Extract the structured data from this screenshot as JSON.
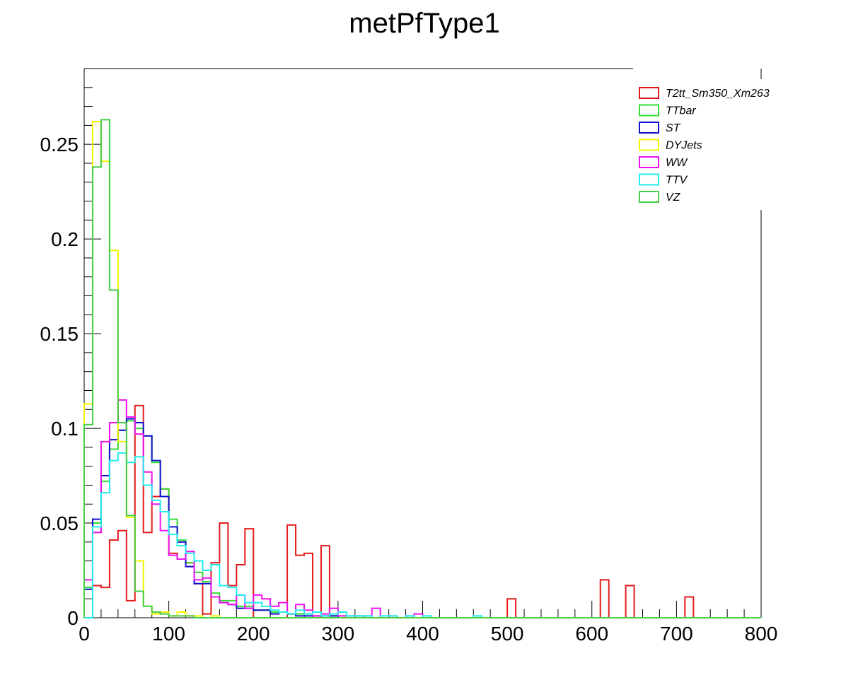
{
  "chart_data": {
    "type": "histogram",
    "title": "metPfType1",
    "xlabel": "",
    "ylabel": "",
    "xlim": [
      0,
      800
    ],
    "ylim": [
      0,
      0.29
    ],
    "bin_width": 10,
    "x_ticks": [
      "0",
      "100",
      "200",
      "300",
      "400",
      "500",
      "600",
      "700",
      "800"
    ],
    "y_ticks": [
      "0",
      "0.05",
      "0.1",
      "0.15",
      "0.2",
      "0.25"
    ],
    "y_tick_values": [
      0,
      0.05,
      0.1,
      0.15,
      0.2,
      0.25
    ],
    "grid": false,
    "legend_position": "top-right",
    "series": [
      {
        "name": "T2tt_Sm350_Xm263",
        "color": "#e31a1c",
        "values": [
          0.0,
          0.017,
          0.016,
          0.041,
          0.046,
          0.009,
          0.112,
          0.045,
          0.064,
          0.068,
          0.034,
          0.031,
          0.029,
          0.018,
          0.002,
          0.029,
          0.05,
          0.017,
          0.028,
          0.047,
          0.0,
          0.0,
          0.0,
          0.0,
          0.049,
          0.033,
          0.034,
          0.0,
          0.038,
          0.0,
          0.0,
          0.0,
          0.0,
          0.0,
          0.0,
          0.0,
          0.0,
          0.0,
          0.0,
          0.0,
          0.0,
          0.0,
          0.0,
          0.0,
          0.0,
          0.0,
          0.0,
          0.0,
          0.0,
          0.0,
          0.01,
          0.0,
          0.0,
          0.0,
          0.0,
          0.0,
          0.0,
          0.0,
          0.0,
          0.0,
          0.0,
          0.02,
          0.0,
          0.0,
          0.017,
          0.0,
          0.0,
          0.0,
          0.0,
          0.0,
          0.0,
          0.011,
          0.0,
          0.0,
          0.0,
          0.0,
          0.0,
          0.0,
          0.0,
          0.0
        ]
      },
      {
        "name": "TTbar",
        "color": "#33dd33",
        "values": [
          0.016,
          0.05,
          0.072,
          0.089,
          0.099,
          0.104,
          0.1,
          0.096,
          0.082,
          0.068,
          0.052,
          0.041,
          0.029,
          0.024,
          0.019,
          0.013,
          0.009,
          0.009,
          0.006,
          0.006,
          0.004,
          0.004,
          0.003,
          0.003,
          0.002,
          0.002,
          0.002,
          0.001,
          0.001,
          0.001,
          0.001,
          0.001,
          0.001,
          0.0,
          0.0,
          0.0,
          0.0,
          0.0,
          0.0,
          0.0,
          0.0,
          0.0,
          0.0,
          0.0,
          0.0,
          0.0,
          0.0,
          0.0,
          0.0,
          0.0,
          0.0,
          0.0,
          0.0,
          0.0,
          0.0,
          0.0,
          0.0,
          0.0,
          0.0,
          0.0,
          0.0,
          0.0,
          0.0,
          0.0,
          0.0,
          0.0,
          0.0,
          0.0,
          0.0,
          0.0,
          0.0,
          0.0,
          0.0,
          0.0,
          0.0,
          0.0,
          0.0,
          0.0,
          0.0,
          0.0
        ]
      },
      {
        "name": "ST",
        "color": "#1010cc",
        "values": [
          0.015,
          0.052,
          0.075,
          0.094,
          0.099,
          0.105,
          0.103,
          0.096,
          0.083,
          0.064,
          0.048,
          0.04,
          0.027,
          0.018,
          0.018,
          0.011,
          0.008,
          0.007,
          0.005,
          0.005,
          0.004,
          0.004,
          0.002,
          0.003,
          0.002,
          0.001,
          0.001,
          0.001,
          0.001,
          0.001,
          0.0,
          0.0,
          0.0,
          0.0,
          0.0,
          0.0,
          0.0,
          0.0,
          0.0,
          0.0,
          0.0,
          0.0,
          0.0,
          0.0,
          0.0,
          0.0,
          0.0,
          0.0,
          0.0,
          0.0,
          0.0,
          0.0,
          0.0,
          0.0,
          0.0,
          0.0,
          0.0,
          0.0,
          0.0,
          0.0,
          0.0,
          0.0,
          0.0,
          0.0,
          0.0,
          0.0,
          0.0,
          0.0,
          0.0,
          0.0,
          0.0,
          0.0,
          0.0,
          0.0,
          0.0,
          0.0,
          0.0,
          0.0,
          0.0,
          0.0
        ]
      },
      {
        "name": "DYJets",
        "color": "#f5f500",
        "values": [
          0.113,
          0.262,
          0.241,
          0.194,
          0.093,
          0.053,
          0.03,
          0.006,
          0.002,
          0.003,
          0.001,
          0.003,
          0.001,
          0.001,
          0.0,
          0.001,
          0.0,
          0.0,
          0.0,
          0.0,
          0.0,
          0.0,
          0.0,
          0.0,
          0.0,
          0.0,
          0.0,
          0.0,
          0.0,
          0.0,
          0.0,
          0.0,
          0.0,
          0.0,
          0.0,
          0.0,
          0.0,
          0.0,
          0.0,
          0.0,
          0.0,
          0.0,
          0.0,
          0.0,
          0.0,
          0.0,
          0.0,
          0.0,
          0.0,
          0.0,
          0.0,
          0.0,
          0.0,
          0.0,
          0.0,
          0.0,
          0.0,
          0.0,
          0.0,
          0.0,
          0.0,
          0.0,
          0.0,
          0.0,
          0.0,
          0.0,
          0.0,
          0.0,
          0.0,
          0.0,
          0.0,
          0.0,
          0.0,
          0.0,
          0.0,
          0.0,
          0.0,
          0.0,
          0.0,
          0.0
        ]
      },
      {
        "name": "WW",
        "color": "#ee11ee",
        "values": [
          0.02,
          0.045,
          0.093,
          0.103,
          0.115,
          0.106,
          0.097,
          0.077,
          0.06,
          0.046,
          0.033,
          0.031,
          0.035,
          0.02,
          0.021,
          0.011,
          0.008,
          0.007,
          0.012,
          0.005,
          0.012,
          0.01,
          0.006,
          0.008,
          0.002,
          0.007,
          0.004,
          0.001,
          0.002,
          0.005,
          0.001,
          0.001,
          0.001,
          0.001,
          0.005,
          0.0,
          0.001,
          0.0,
          0.001,
          0.002,
          0.0,
          0.0,
          0.0,
          0.0,
          0.0,
          0.0,
          0.0,
          0.0,
          0.0,
          0.0,
          0.0,
          0.0,
          0.0,
          0.0,
          0.0,
          0.0,
          0.0,
          0.0,
          0.0,
          0.0,
          0.0,
          0.0,
          0.0,
          0.0,
          0.0,
          0.0,
          0.0,
          0.0,
          0.0,
          0.0,
          0.0,
          0.0,
          0.0,
          0.0,
          0.0,
          0.0,
          0.0,
          0.0,
          0.0,
          0.0
        ]
      },
      {
        "name": "TTV",
        "color": "#22eeee",
        "values": [
          0.0,
          0.048,
          0.066,
          0.083,
          0.087,
          0.082,
          0.085,
          0.07,
          0.062,
          0.056,
          0.044,
          0.038,
          0.034,
          0.03,
          0.025,
          0.028,
          0.017,
          0.016,
          0.012,
          0.008,
          0.008,
          0.006,
          0.004,
          0.003,
          0.002,
          0.004,
          0.002,
          0.003,
          0.001,
          0.002,
          0.003,
          0.001,
          0.001,
          0.001,
          0.0,
          0.001,
          0.001,
          0.0,
          0.001,
          0.0,
          0.001,
          0.0,
          0.0,
          0.0,
          0.0,
          0.0,
          0.001,
          0.0,
          0.0,
          0.0,
          0.0,
          0.0,
          0.0,
          0.0,
          0.0,
          0.0,
          0.0,
          0.0,
          0.0,
          0.0,
          0.0,
          0.0,
          0.0,
          0.0,
          0.0,
          0.0,
          0.0,
          0.0,
          0.0,
          0.0,
          0.0,
          0.0,
          0.0,
          0.0,
          0.0,
          0.0,
          0.0,
          0.0,
          0.0,
          0.0
        ]
      },
      {
        "name": "VZ",
        "color": "#44cc44",
        "values": [
          0.102,
          0.238,
          0.263,
          0.173,
          0.103,
          0.054,
          0.014,
          0.006,
          0.003,
          0.002,
          0.001,
          0.001,
          0.001,
          0.0,
          0.0,
          0.0,
          0.0,
          0.0,
          0.0,
          0.0,
          0.0,
          0.0,
          0.0,
          0.0,
          0.0,
          0.0,
          0.0,
          0.0,
          0.0,
          0.0,
          0.0,
          0.0,
          0.0,
          0.0,
          0.0,
          0.0,
          0.0,
          0.0,
          0.0,
          0.0,
          0.0,
          0.0,
          0.0,
          0.0,
          0.0,
          0.0,
          0.0,
          0.0,
          0.0,
          0.0,
          0.0,
          0.0,
          0.0,
          0.0,
          0.0,
          0.0,
          0.0,
          0.0,
          0.0,
          0.0,
          0.0,
          0.0,
          0.0,
          0.0,
          0.0,
          0.0,
          0.0,
          0.0,
          0.0,
          0.0,
          0.0,
          0.0,
          0.0,
          0.0,
          0.0,
          0.0,
          0.0,
          0.0,
          0.0,
          0.0
        ]
      }
    ]
  }
}
